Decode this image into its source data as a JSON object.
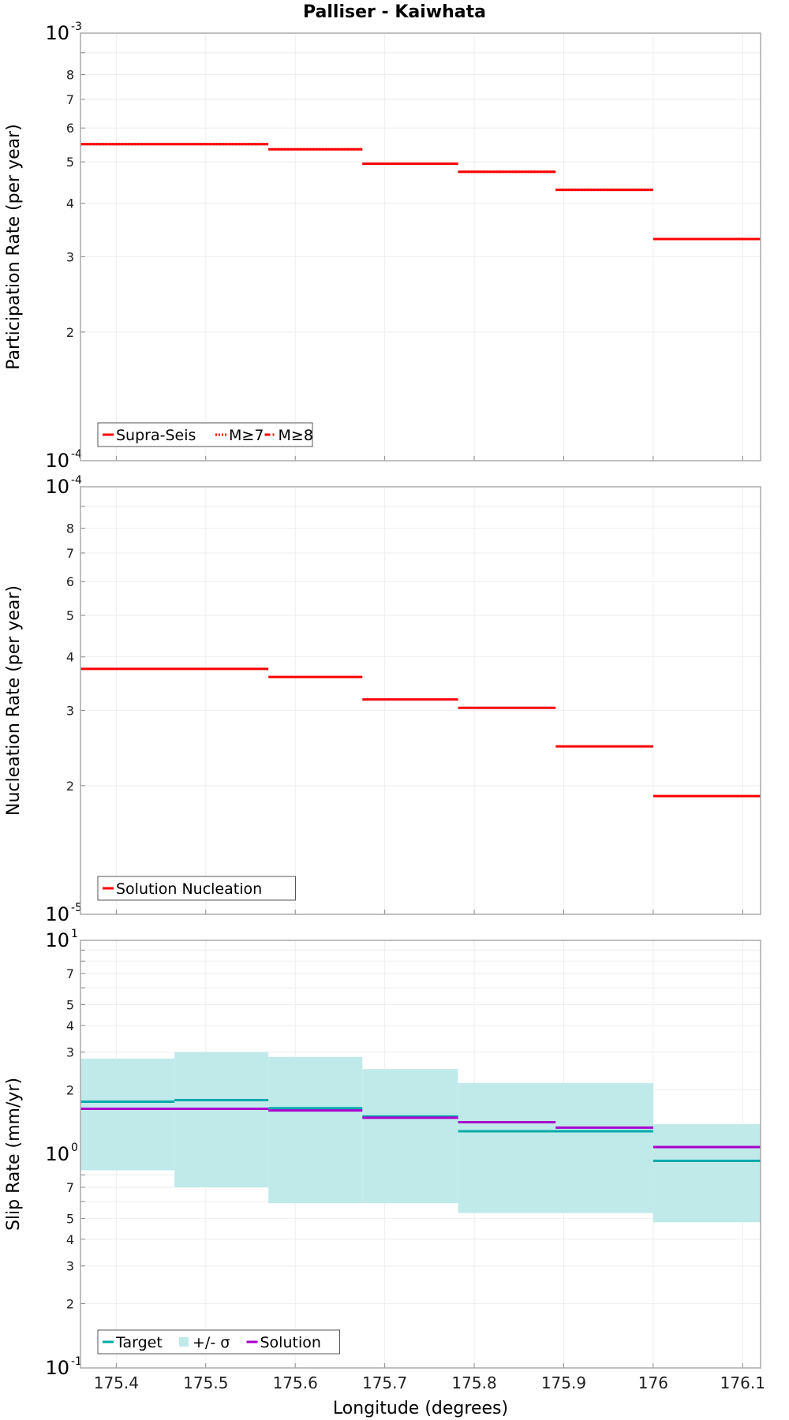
{
  "figure_title": "Palliser - Kaiwhata",
  "chart_data": [
    {
      "type": "line",
      "title": "Palliser - Kaiwhata",
      "ylabel": "Participation Rate (per year)",
      "xlabel": "",
      "yscale": "log",
      "ylim": [
        0.0001,
        0.001
      ],
      "xlim": [
        175.36,
        176.12
      ],
      "grid": true,
      "x_ticks": [
        "175.4",
        "175.5",
        "175.6",
        "175.7",
        "175.8",
        "175.9",
        "176",
        "176.1"
      ],
      "y_decade_labels": [
        {
          "base": "10",
          "exp": "-4"
        },
        {
          "base": "10",
          "exp": "-3"
        }
      ],
      "y_minor_labels": [
        "2",
        "3",
        "4",
        "5",
        "6",
        "7",
        "8"
      ],
      "legend": {
        "position": "bottom-left",
        "entries": [
          "Supra-Seis",
          "M≥7",
          "M≥8"
        ]
      },
      "series": [
        {
          "name": "Supra-Seis",
          "color": "#ff0000",
          "style": "solid",
          "segments": [
            {
              "x": [
                175.36,
                175.57
              ],
              "y": 0.00055
            },
            {
              "x": [
                175.57,
                175.675
              ],
              "y": 0.000535
            },
            {
              "x": [
                175.675,
                175.782
              ],
              "y": 0.000495
            },
            {
              "x": [
                175.782,
                175.891
              ],
              "y": 0.000474
            },
            {
              "x": [
                175.891,
                176.0
              ],
              "y": 0.00043
            },
            {
              "x": [
                176.0,
                176.12
              ],
              "y": 0.00033
            }
          ]
        },
        {
          "name": "M≥7",
          "color": "#ff0000",
          "style": "dotted",
          "segments": [
            {
              "x": [
                175.36,
                175.57
              ],
              "y": 0.00055
            },
            {
              "x": [
                175.57,
                175.675
              ],
              "y": 0.000535
            },
            {
              "x": [
                175.675,
                175.782
              ],
              "y": 0.000495
            },
            {
              "x": [
                175.782,
                175.891
              ],
              "y": 0.000474
            },
            {
              "x": [
                175.891,
                176.0
              ],
              "y": 0.00043
            },
            {
              "x": [
                176.0,
                176.12
              ],
              "y": 0.00033
            }
          ]
        },
        {
          "name": "M≥8",
          "color": "#ff0000",
          "style": "dashdot",
          "segments": []
        }
      ]
    },
    {
      "type": "line",
      "title": "",
      "ylabel": "Nucleation Rate (per year)",
      "xlabel": "",
      "yscale": "log",
      "ylim": [
        1e-05,
        0.0001
      ],
      "xlim": [
        175.36,
        176.12
      ],
      "grid": true,
      "x_ticks": [
        "175.4",
        "175.5",
        "175.6",
        "175.7",
        "175.8",
        "175.9",
        "176",
        "176.1"
      ],
      "y_decade_labels": [
        {
          "base": "10",
          "exp": "-5"
        },
        {
          "base": "10",
          "exp": "-4"
        }
      ],
      "y_minor_labels": [
        "2",
        "3",
        "4",
        "5",
        "6",
        "7",
        "8"
      ],
      "legend": {
        "position": "bottom-left",
        "entries": [
          "Solution Nucleation"
        ]
      },
      "series": [
        {
          "name": "Solution Nucleation",
          "color": "#ff0000",
          "style": "solid",
          "segments": [
            {
              "x": [
                175.36,
                175.57
              ],
              "y": 3.75e-05
            },
            {
              "x": [
                175.57,
                175.675
              ],
              "y": 3.59e-05
            },
            {
              "x": [
                175.675,
                175.782
              ],
              "y": 3.18e-05
            },
            {
              "x": [
                175.782,
                175.891
              ],
              "y": 3.04e-05
            },
            {
              "x": [
                175.891,
                176.0
              ],
              "y": 2.47e-05
            },
            {
              "x": [
                176.0,
                176.12
              ],
              "y": 1.89e-05
            }
          ]
        }
      ]
    },
    {
      "type": "line",
      "title": "",
      "ylabel": "Slip Rate (mm/yr)",
      "xlabel": "Longitude (degrees)",
      "yscale": "log",
      "ylim": [
        0.1,
        10
      ],
      "xlim": [
        175.36,
        176.12
      ],
      "grid": true,
      "x_ticks": [
        "175.4",
        "175.5",
        "175.6",
        "175.7",
        "175.8",
        "175.9",
        "176",
        "176.1"
      ],
      "y_decade_labels": [
        {
          "base": "10",
          "exp": "-1"
        },
        {
          "base": "10",
          "exp": "0"
        },
        {
          "base": "10",
          "exp": "1"
        }
      ],
      "y_minor_labels": [
        "2",
        "3",
        "4",
        "5",
        "7",
        "2",
        "3",
        "4",
        "5",
        "7"
      ],
      "legend": {
        "position": "bottom-left",
        "entries": [
          "Target",
          "+/- σ",
          "Solution"
        ]
      },
      "band": {
        "name": "+/- σ",
        "color": "#c0eaea",
        "segments": [
          {
            "x": [
              175.36,
              175.465
            ],
            "low": 0.84,
            "high": 2.8
          },
          {
            "x": [
              175.465,
              175.57
            ],
            "low": 0.7,
            "high": 3.0
          },
          {
            "x": [
              175.57,
              175.675
            ],
            "low": 0.59,
            "high": 2.85
          },
          {
            "x": [
              175.675,
              175.782
            ],
            "low": 0.59,
            "high": 2.5
          },
          {
            "x": [
              175.782,
              176.0
            ],
            "low": 0.53,
            "high": 2.15
          },
          {
            "x": [
              176.0,
              176.12
            ],
            "low": 0.48,
            "high": 1.38
          }
        ]
      },
      "series": [
        {
          "name": "Target",
          "color": "#00aaaa",
          "style": "solid",
          "segments": [
            {
              "x": [
                175.36,
                175.465
              ],
              "y": 1.76
            },
            {
              "x": [
                175.465,
                175.57
              ],
              "y": 1.79
            },
            {
              "x": [
                175.57,
                175.675
              ],
              "y": 1.64
            },
            {
              "x": [
                175.675,
                175.782
              ],
              "y": 1.5
            },
            {
              "x": [
                175.782,
                176.0
              ],
              "y": 1.28
            },
            {
              "x": [
                176.0,
                176.12
              ],
              "y": 0.93
            }
          ]
        },
        {
          "name": "Solution",
          "color": "#aa00cc",
          "style": "solid",
          "segments": [
            {
              "x": [
                175.36,
                175.57
              ],
              "y": 1.63
            },
            {
              "x": [
                175.57,
                175.675
              ],
              "y": 1.6
            },
            {
              "x": [
                175.675,
                175.782
              ],
              "y": 1.48
            },
            {
              "x": [
                175.782,
                175.891
              ],
              "y": 1.41
            },
            {
              "x": [
                175.891,
                176.0
              ],
              "y": 1.33
            },
            {
              "x": [
                176.0,
                176.12
              ],
              "y": 1.08
            }
          ]
        }
      ]
    }
  ]
}
